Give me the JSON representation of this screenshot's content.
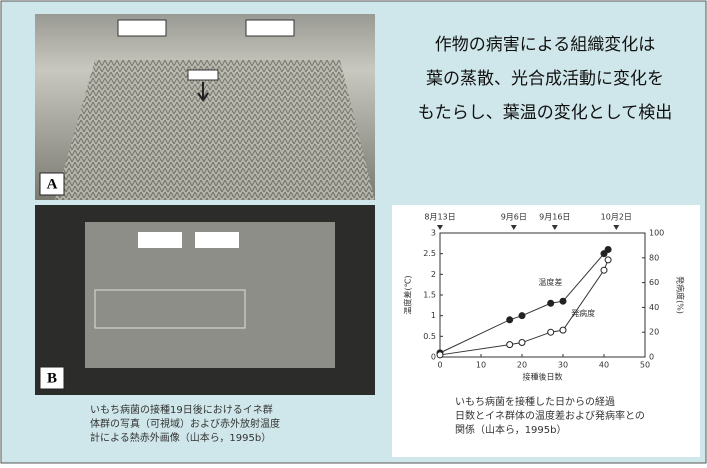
{
  "headline": [
    "作物の病害による組織変化は",
    "葉の蒸散、光合成活動に変化を",
    "もたらし、葉温の変化として検出"
  ],
  "photo_a": {
    "label": "A"
  },
  "photo_b": {
    "label": "B",
    "caption": [
      "いもち病菌の接種19日後におけるイネ群",
      "体群の写真（可視域）および赤外放射温度",
      "計による熱赤外画像（山本ら，1995b）"
    ]
  },
  "chart": {
    "top_labels": [
      "8月13日",
      "9月6日",
      "9月16日",
      "10月2日"
    ],
    "x_label": "接種後日数",
    "y_label": "温度差(℃)",
    "y2_label": "発病度(%)",
    "xlim": [
      0,
      50
    ],
    "xticks": [
      0,
      10,
      20,
      30,
      40,
      50
    ],
    "ylim": [
      0,
      3
    ],
    "yticks": [
      0,
      0.5,
      1,
      1.5,
      2,
      2.5,
      3
    ],
    "y2lim": [
      0,
      100
    ],
    "y2ticks": [
      0,
      20,
      40,
      60,
      80,
      100
    ],
    "series": [
      {
        "name": "温度差",
        "x": [
          0,
          17,
          20,
          27,
          30,
          40,
          41
        ],
        "values": [
          0.1,
          0.9,
          1.0,
          1.3,
          1.35,
          2.5,
          2.6
        ]
      },
      {
        "name": "発病度",
        "x": [
          0,
          17,
          20,
          27,
          30,
          40,
          41
        ],
        "values": [
          0.05,
          0.3,
          0.35,
          0.6,
          0.65,
          2.1,
          2.35
        ]
      }
    ],
    "caption": [
      "いもち病菌を接種した日からの経過",
      "日数とイネ群体の温度差および発病率との",
      "関係（山本ら，1995b）"
    ]
  }
}
